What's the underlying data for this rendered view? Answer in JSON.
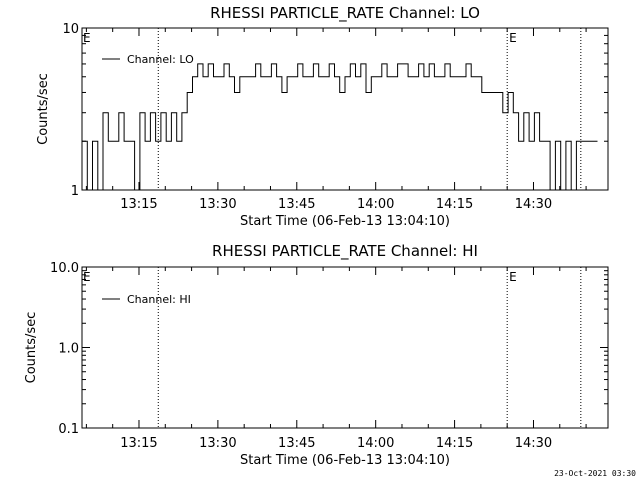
{
  "footer": {
    "timestamp": "23-Oct-2021 03:30"
  },
  "chart_data": [
    {
      "type": "line",
      "title": "RHESSI PARTICLE_RATE Channel: LO",
      "xlabel": "Start Time (06-Feb-13 13:04:10)",
      "ylabel": "Counts/sec",
      "yscale": "log",
      "ylim": [
        1,
        10
      ],
      "ytick_labels": [
        "1",
        "10"
      ],
      "xlim": [
        "13:04:10",
        "14:44:10"
      ],
      "xtick_labels": [
        "13:15",
        "13:30",
        "13:45",
        "14:00",
        "14:15",
        "14:30"
      ],
      "legend": {
        "position": "top-left",
        "entries": [
          "Channel: LO"
        ]
      },
      "markers": [
        {
          "time": "13:18:40",
          "label": ""
        },
        {
          "time": "14:25:00",
          "label": "E"
        },
        {
          "time": "14:39:00",
          "label": ""
        }
      ],
      "left_marker_label": "E",
      "series": [
        {
          "name": "Channel: LO",
          "x_minutes": [
            0,
            1,
            2,
            3,
            4,
            5,
            6,
            7,
            8,
            9,
            10,
            11,
            12,
            13,
            14,
            15,
            16,
            17,
            18,
            19,
            20,
            21,
            22,
            23,
            24,
            25,
            26,
            27,
            28,
            29,
            30,
            31,
            32,
            33,
            34,
            35,
            36,
            37,
            38,
            39,
            40,
            41,
            42,
            43,
            44,
            45,
            46,
            47,
            48,
            49,
            50,
            51,
            52,
            53,
            54,
            55,
            56,
            57,
            58,
            59,
            60,
            61,
            62,
            63,
            64,
            65,
            66,
            67,
            68,
            69,
            70,
            71,
            72,
            73,
            74,
            75,
            76,
            77,
            78,
            79,
            80,
            81,
            82,
            83,
            84,
            85,
            86,
            87,
            88,
            89,
            90,
            91,
            92,
            93,
            94,
            95,
            96,
            97,
            98
          ],
          "values": [
            2,
            1,
            2,
            1,
            3,
            2,
            2,
            3,
            2,
            2,
            1,
            3,
            2,
            3,
            2,
            3,
            2,
            3,
            2,
            3,
            4,
            5,
            6,
            5,
            6,
            5,
            5,
            6,
            5,
            4,
            5,
            5,
            5,
            6,
            5,
            5,
            6,
            5,
            4,
            5,
            5,
            6,
            5,
            5,
            6,
            5,
            5,
            6,
            5,
            4,
            5,
            6,
            5,
            6,
            4,
            5,
            5,
            6,
            5,
            5,
            6,
            6,
            5,
            5,
            6,
            5,
            6,
            5,
            5,
            6,
            5,
            5,
            5,
            6,
            5,
            5,
            4,
            4,
            4,
            4,
            3,
            4,
            3,
            2,
            3,
            2,
            3,
            2,
            2,
            1,
            2,
            1,
            2,
            1,
            2,
            2,
            2,
            2,
            2
          ],
          "color": "#000000"
        }
      ]
    },
    {
      "type": "line",
      "title": "RHESSI PARTICLE_RATE Channel: HI",
      "xlabel": "Start Time (06-Feb-13 13:04:10)",
      "ylabel": "Counts/sec",
      "yscale": "log",
      "ylim": [
        0.1,
        10
      ],
      "ytick_labels": [
        "0.1",
        "1.0",
        "10.0"
      ],
      "xlim": [
        "13:04:10",
        "14:44:10"
      ],
      "xtick_labels": [
        "13:15",
        "13:30",
        "13:45",
        "14:00",
        "14:15",
        "14:30"
      ],
      "legend": {
        "position": "top-left",
        "entries": [
          "Channel: HI"
        ]
      },
      "markers": [
        {
          "time": "13:18:40",
          "label": ""
        },
        {
          "time": "14:25:00",
          "label": "E"
        },
        {
          "time": "14:39:00",
          "label": ""
        }
      ],
      "left_marker_label": "E",
      "series": [
        {
          "name": "Channel: HI",
          "x_minutes": [],
          "values": [],
          "color": "#000000"
        }
      ]
    }
  ]
}
